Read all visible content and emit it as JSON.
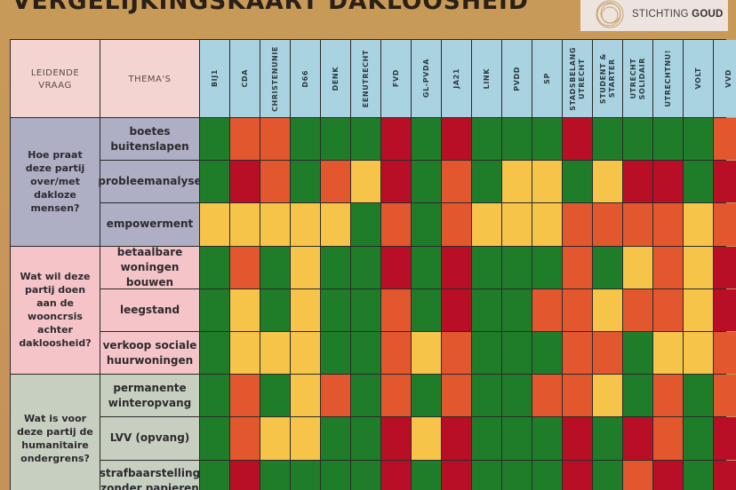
{
  "header": {
    "title": "VERGELIJKINGSKAART DAKLOOSHEID",
    "logo": {
      "icon": "concentric-rings-icon",
      "text_light": "STICHTING ",
      "text_bold": "GOUD"
    }
  },
  "table": {
    "col_headers": {
      "question": "LEIDENDE\nVRAAG",
      "theme": "THEMA'S"
    },
    "parties": [
      "BIJ1",
      "CDA",
      "CHRISTENUNIE",
      "D66",
      "DENK",
      "EENUTRECHT",
      "FVD",
      "GL-PVDA",
      "JA21",
      "LINK",
      "PVDD",
      "SP",
      "STADSBELANG\nUTRECHT",
      "STUDENT &\nSTARTER",
      "UTRECHT\nSOLIDAIR",
      "UTRECHTNU!",
      "VOLT",
      "VVD"
    ],
    "groups": [
      {
        "question": "Hoe praat deze partij over/met dakloze mensen?",
        "color": "#aeaec4",
        "themes": [
          "boetes buitenslapen",
          "probleemanalyse",
          "empowerment"
        ]
      },
      {
        "question": "Wat wil deze partij doen aan de wooncrsis achter dakloosheid?",
        "color": "#f4c4c8",
        "themes": [
          "betaalbare woningen bouwen",
          "leegstand",
          "verkoop sociale huurwoningen"
        ]
      },
      {
        "question": "Wat is voor deze partij de humanitaire ondergrens?",
        "color": "#c7cfc0",
        "themes": [
          "permanente winteropvang",
          "LVV (opvang)",
          "strafbaarstelling zonder papieren"
        ]
      }
    ],
    "rating_colors": {
      "G": "#1f7d2a",
      "Y": "#f7c44a",
      "O": "#e2572e",
      "R": "#b80f26"
    },
    "ratings": [
      [
        "G",
        "O",
        "O",
        "G",
        "G",
        "G",
        "R",
        "G",
        "R",
        "G",
        "G",
        "G",
        "R",
        "G",
        "G",
        "G",
        "G",
        "O"
      ],
      [
        "G",
        "R",
        "O",
        "G",
        "O",
        "Y",
        "R",
        "G",
        "O",
        "G",
        "Y",
        "Y",
        "G",
        "Y",
        "R",
        "R",
        "G",
        "R"
      ],
      [
        "Y",
        "Y",
        "Y",
        "Y",
        "Y",
        "G",
        "O",
        "G",
        "O",
        "Y",
        "Y",
        "Y",
        "O",
        "O",
        "O",
        "O",
        "Y",
        "O"
      ],
      [
        "G",
        "O",
        "G",
        "Y",
        "G",
        "G",
        "R",
        "G",
        "R",
        "G",
        "G",
        "G",
        "O",
        "G",
        "Y",
        "O",
        "Y",
        "R"
      ],
      [
        "G",
        "Y",
        "G",
        "Y",
        "G",
        "G",
        "O",
        "G",
        "R",
        "G",
        "G",
        "O",
        "O",
        "Y",
        "O",
        "O",
        "Y",
        "R"
      ],
      [
        "G",
        "Y",
        "Y",
        "Y",
        "G",
        "G",
        "O",
        "Y",
        "O",
        "G",
        "G",
        "G",
        "O",
        "O",
        "G",
        "Y",
        "Y",
        "O"
      ],
      [
        "G",
        "O",
        "G",
        "Y",
        "O",
        "G",
        "O",
        "G",
        "O",
        "G",
        "G",
        "O",
        "O",
        "Y",
        "G",
        "O",
        "G",
        "O"
      ],
      [
        "G",
        "O",
        "Y",
        "Y",
        "G",
        "G",
        "R",
        "Y",
        "R",
        "G",
        "G",
        "G",
        "R",
        "G",
        "R",
        "O",
        "G",
        "R"
      ],
      [
        "G",
        "R",
        "G",
        "G",
        "G",
        "G",
        "R",
        "G",
        "R",
        "G",
        "G",
        "G",
        "R",
        "G",
        "O",
        "R",
        "G",
        "R"
      ]
    ]
  }
}
